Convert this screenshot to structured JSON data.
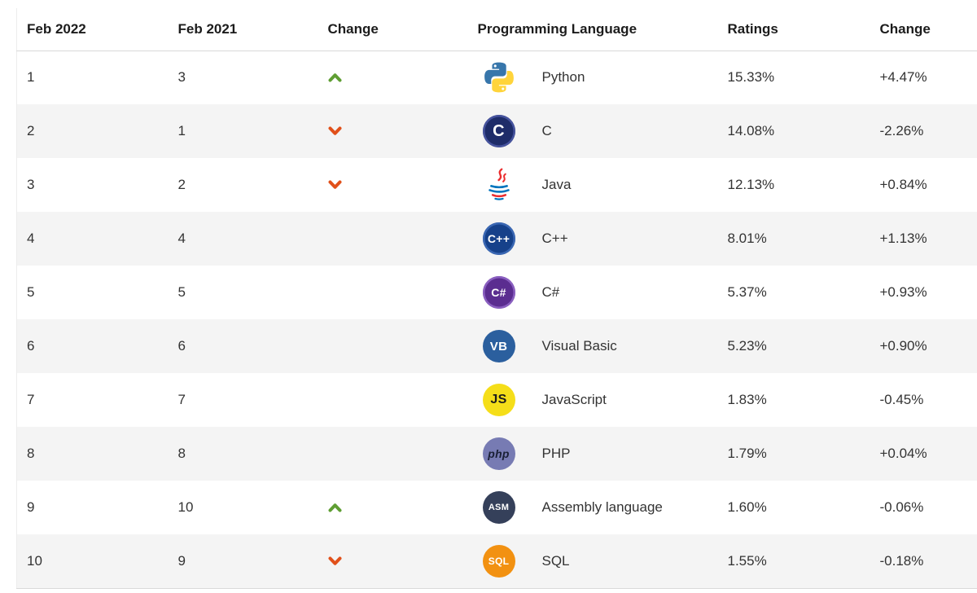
{
  "table": {
    "headers": [
      "Feb 2022",
      "Feb 2021",
      "Change",
      "Programming Language",
      "Ratings",
      "Change"
    ],
    "rows": [
      {
        "rank_2022": "1",
        "rank_2021": "3",
        "direction": "up",
        "language": "Python",
        "ratings": "15.33%",
        "change": "+4.47%",
        "icon": {
          "kind": "python",
          "name": "python-icon"
        }
      },
      {
        "rank_2022": "2",
        "rank_2021": "1",
        "direction": "down",
        "language": "C",
        "ratings": "14.08%",
        "change": "-2.26%",
        "icon": {
          "kind": "badge",
          "name": "c-logo-icon",
          "text": "C",
          "bg": "#1e2c69",
          "fg": "#ffffff",
          "ring": "#46539e",
          "size": 20,
          "bold": true
        }
      },
      {
        "rank_2022": "3",
        "rank_2021": "2",
        "direction": "down",
        "language": "Java",
        "ratings": "12.13%",
        "change": "+0.84%",
        "icon": {
          "kind": "java",
          "name": "java-icon"
        }
      },
      {
        "rank_2022": "4",
        "rank_2021": "4",
        "direction": "none",
        "language": "C++",
        "ratings": "8.01%",
        "change": "+1.13%",
        "icon": {
          "kind": "badge",
          "name": "cpp-logo-icon",
          "text": "C++",
          "bg": "#16418a",
          "fg": "#ffffff",
          "ring": "#3a67b3",
          "size": 14,
          "bold": true
        }
      },
      {
        "rank_2022": "5",
        "rank_2021": "5",
        "direction": "none",
        "language": "C#",
        "ratings": "5.37%",
        "change": "+0.93%",
        "icon": {
          "kind": "badge",
          "name": "csharp-logo-icon",
          "text": "C#",
          "bg": "#5b2d90",
          "fg": "#ffffff",
          "ring": "#8a5fc0",
          "size": 14,
          "bold": true
        }
      },
      {
        "rank_2022": "6",
        "rank_2021": "6",
        "direction": "none",
        "language": "Visual Basic",
        "ratings": "5.23%",
        "change": "+0.90%",
        "icon": {
          "kind": "badge",
          "name": "visual-basic-icon",
          "text": "VB",
          "bg": "#2b5f9e",
          "fg": "#ffffff",
          "size": 15,
          "bold": false
        }
      },
      {
        "rank_2022": "7",
        "rank_2021": "7",
        "direction": "none",
        "language": "JavaScript",
        "ratings": "1.83%",
        "change": "-0.45%",
        "icon": {
          "kind": "badge",
          "name": "javascript-icon",
          "text": "JS",
          "bg": "#f5de19",
          "fg": "#1c1c1c",
          "size": 16,
          "bold": true
        }
      },
      {
        "rank_2022": "8",
        "rank_2021": "8",
        "direction": "none",
        "language": "PHP",
        "ratings": "1.79%",
        "change": "+0.04%",
        "icon": {
          "kind": "badge",
          "name": "php-icon",
          "text": "php",
          "bg": "#777bb3",
          "fg": "#1a2036",
          "size": 14,
          "bold": true,
          "italic": true
        }
      },
      {
        "rank_2022": "9",
        "rank_2021": "10",
        "direction": "up",
        "language": "Assembly language",
        "ratings": "1.60%",
        "change": "-0.06%",
        "icon": {
          "kind": "badge",
          "name": "assembly-icon",
          "text": "ASM",
          "bg": "#35405a",
          "fg": "#ffffff",
          "size": 11,
          "bold": true
        }
      },
      {
        "rank_2022": "10",
        "rank_2021": "9",
        "direction": "down",
        "language": "SQL",
        "ratings": "1.55%",
        "change": "-0.18%",
        "icon": {
          "kind": "badge",
          "name": "sql-icon",
          "text": "SQL",
          "bg": "#f29111",
          "fg": "#ffffff",
          "size": 12,
          "bold": true
        }
      }
    ]
  },
  "colors": {
    "arrow_up": "#5f9e33",
    "arrow_down": "#e1501a",
    "stripe": "#f4f4f4",
    "header_text": "#1c1c1c",
    "body_text": "#333333"
  },
  "chart_data": {
    "type": "table",
    "title": "Programming language ranking (TIOBE-style index)",
    "columns": [
      "Feb 2022",
      "Feb 2021",
      "Change",
      "Programming Language",
      "Ratings",
      "Change"
    ],
    "rows": [
      [
        "1",
        "3",
        "up",
        "Python",
        "15.33%",
        "+4.47%"
      ],
      [
        "2",
        "1",
        "down",
        "C",
        "14.08%",
        "-2.26%"
      ],
      [
        "3",
        "2",
        "down",
        "Java",
        "12.13%",
        "+0.84%"
      ],
      [
        "4",
        "4",
        "",
        "C++",
        "8.01%",
        "+1.13%"
      ],
      [
        "5",
        "5",
        "",
        "C#",
        "5.37%",
        "+0.93%"
      ],
      [
        "6",
        "6",
        "",
        "Visual Basic",
        "5.23%",
        "+0.90%"
      ],
      [
        "7",
        "7",
        "",
        "JavaScript",
        "1.83%",
        "-0.45%"
      ],
      [
        "8",
        "8",
        "",
        "PHP",
        "1.79%",
        "+0.04%"
      ],
      [
        "9",
        "10",
        "up",
        "Assembly language",
        "1.60%",
        "-0.06%"
      ],
      [
        "10",
        "9",
        "down",
        "SQL",
        "1.55%",
        "-0.18%"
      ]
    ]
  }
}
